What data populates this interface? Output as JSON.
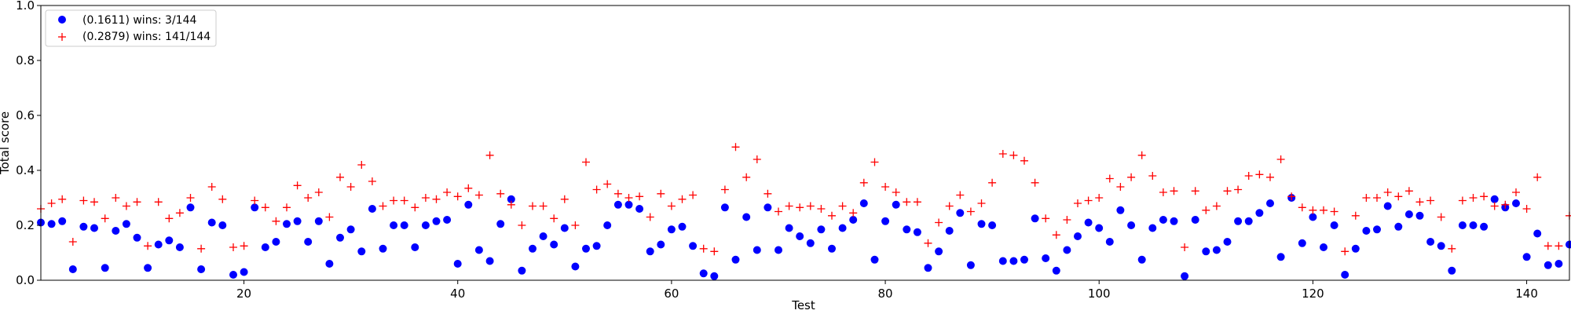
{
  "chart_data": {
    "type": "scatter",
    "title": "",
    "xlabel": "Test",
    "ylabel": "Total score",
    "xlim": [
      1,
      144
    ],
    "ylim": [
      0.0,
      1.0
    ],
    "xticks": [
      20,
      40,
      60,
      80,
      100,
      120,
      140
    ],
    "yticks": [
      0.0,
      0.2,
      0.4,
      0.6,
      0.8,
      1.0
    ],
    "grid": false,
    "legend_position": "top-left",
    "series": [
      {
        "name": "(0.1611) wins: 3/144",
        "marker": "circle",
        "color": "#0000ff",
        "x": [
          1,
          2,
          3,
          4,
          5,
          6,
          7,
          8,
          9,
          10,
          11,
          12,
          13,
          14,
          15,
          16,
          17,
          18,
          19,
          20,
          21,
          22,
          23,
          24,
          25,
          26,
          27,
          28,
          29,
          30,
          31,
          32,
          33,
          34,
          35,
          36,
          37,
          38,
          39,
          40,
          41,
          42,
          43,
          44,
          45,
          46,
          47,
          48,
          49,
          50,
          51,
          52,
          53,
          54,
          55,
          56,
          57,
          58,
          59,
          60,
          61,
          62,
          63,
          64,
          65,
          66,
          67,
          68,
          69,
          70,
          71,
          72,
          73,
          74,
          75,
          76,
          77,
          78,
          79,
          80,
          81,
          82,
          83,
          84,
          85,
          86,
          87,
          88,
          89,
          90,
          91,
          92,
          93,
          94,
          95,
          96,
          97,
          98,
          99,
          100,
          101,
          102,
          103,
          104,
          105,
          106,
          107,
          108,
          109,
          110,
          111,
          112,
          113,
          114,
          115,
          116,
          117,
          118,
          119,
          120,
          121,
          122,
          123,
          124,
          125,
          126,
          127,
          128,
          129,
          130,
          131,
          132,
          133,
          134,
          135,
          136,
          137,
          138,
          139,
          140,
          141,
          142,
          143,
          144
        ],
        "y": [
          0.21,
          0.205,
          0.215,
          0.04,
          0.195,
          0.19,
          0.045,
          0.18,
          0.205,
          0.155,
          0.045,
          0.13,
          0.145,
          0.12,
          0.265,
          0.04,
          0.21,
          0.2,
          0.02,
          0.03,
          0.265,
          0.12,
          0.14,
          0.205,
          0.215,
          0.14,
          0.215,
          0.06,
          0.155,
          0.185,
          0.105,
          0.26,
          0.115,
          0.2,
          0.2,
          0.12,
          0.2,
          0.215,
          0.22,
          0.06,
          0.275,
          0.11,
          0.07,
          0.205,
          0.295,
          0.035,
          0.115,
          0.16,
          0.13,
          0.19,
          0.05,
          0.115,
          0.125,
          0.2,
          0.275,
          0.275,
          0.26,
          0.105,
          0.13,
          0.185,
          0.195,
          0.125,
          0.025,
          0.015,
          0.265,
          0.075,
          0.23,
          0.11,
          0.265,
          0.11,
          0.19,
          0.16,
          0.135,
          0.185,
          0.115,
          0.19,
          0.22,
          0.28,
          0.075,
          0.215,
          0.275,
          0.185,
          0.175,
          0.045,
          0.105,
          0.18,
          0.245,
          0.055,
          0.205,
          0.2,
          0.07,
          0.07,
          0.075,
          0.225,
          0.08,
          0.035,
          0.11,
          0.16,
          0.21,
          0.19,
          0.14,
          0.255,
          0.2,
          0.075,
          0.19,
          0.22,
          0.215,
          0.015,
          0.22,
          0.105,
          0.11,
          0.14,
          0.215,
          0.215,
          0.245,
          0.28,
          0.085,
          0.3,
          0.135,
          0.23,
          0.12,
          0.2,
          0.02,
          0.115,
          0.18,
          0.185,
          0.27,
          0.195,
          0.24,
          0.235,
          0.14,
          0.125,
          0.035,
          0.2,
          0.2,
          0.195,
          0.295,
          0.265,
          0.28,
          0.085,
          0.17,
          0.055,
          0.06,
          0.13
        ]
      },
      {
        "name": "(0.2879) wins: 141/144",
        "marker": "plus",
        "color": "#ff0000",
        "x": [
          1,
          2,
          3,
          4,
          5,
          6,
          7,
          8,
          9,
          10,
          11,
          12,
          13,
          14,
          15,
          16,
          17,
          18,
          19,
          20,
          21,
          22,
          23,
          24,
          25,
          26,
          27,
          28,
          29,
          30,
          31,
          32,
          33,
          34,
          35,
          36,
          37,
          38,
          39,
          40,
          41,
          42,
          43,
          44,
          45,
          46,
          47,
          48,
          49,
          50,
          51,
          52,
          53,
          54,
          55,
          56,
          57,
          58,
          59,
          60,
          61,
          62,
          63,
          64,
          65,
          66,
          67,
          68,
          69,
          70,
          71,
          72,
          73,
          74,
          75,
          76,
          77,
          78,
          79,
          80,
          81,
          82,
          83,
          84,
          85,
          86,
          87,
          88,
          89,
          90,
          91,
          92,
          93,
          94,
          95,
          96,
          97,
          98,
          99,
          100,
          101,
          102,
          103,
          104,
          105,
          106,
          107,
          108,
          109,
          110,
          111,
          112,
          113,
          114,
          115,
          116,
          117,
          118,
          119,
          120,
          121,
          122,
          123,
          124,
          125,
          126,
          127,
          128,
          129,
          130,
          131,
          132,
          133,
          134,
          135,
          136,
          137,
          138,
          139,
          140,
          141,
          142,
          143,
          144
        ],
        "y": [
          0.26,
          0.28,
          0.295,
          0.14,
          0.29,
          0.285,
          0.225,
          0.3,
          0.27,
          0.285,
          0.125,
          0.285,
          0.225,
          0.245,
          0.3,
          0.115,
          0.34,
          0.295,
          0.12,
          0.125,
          0.29,
          0.265,
          0.215,
          0.265,
          0.345,
          0.3,
          0.32,
          0.23,
          0.375,
          0.34,
          0.42,
          0.36,
          0.27,
          0.29,
          0.29,
          0.265,
          0.3,
          0.295,
          0.32,
          0.305,
          0.335,
          0.31,
          0.455,
          0.315,
          0.275,
          0.2,
          0.27,
          0.27,
          0.225,
          0.295,
          0.2,
          0.43,
          0.33,
          0.35,
          0.315,
          0.3,
          0.305,
          0.23,
          0.315,
          0.27,
          0.295,
          0.31,
          0.115,
          0.105,
          0.33,
          0.485,
          0.375,
          0.44,
          0.315,
          0.25,
          0.27,
          0.265,
          0.27,
          0.26,
          0.235,
          0.27,
          0.245,
          0.355,
          0.43,
          0.34,
          0.32,
          0.285,
          0.285,
          0.135,
          0.21,
          0.27,
          0.31,
          0.25,
          0.28,
          0.355,
          0.46,
          0.455,
          0.435,
          0.355,
          0.225,
          0.165,
          0.22,
          0.28,
          0.29,
          0.3,
          0.37,
          0.34,
          0.375,
          0.455,
          0.38,
          0.32,
          0.325,
          0.12,
          0.325,
          0.255,
          0.27,
          0.325,
          0.33,
          0.38,
          0.385,
          0.375,
          0.44,
          0.305,
          0.265,
          0.255,
          0.255,
          0.25,
          0.105,
          0.235,
          0.3,
          0.3,
          0.32,
          0.305,
          0.325,
          0.285,
          0.29,
          0.23,
          0.115,
          0.29,
          0.3,
          0.305,
          0.27,
          0.275,
          0.32,
          0.26,
          0.375,
          0.125,
          0.125,
          0.235
        ]
      }
    ]
  }
}
